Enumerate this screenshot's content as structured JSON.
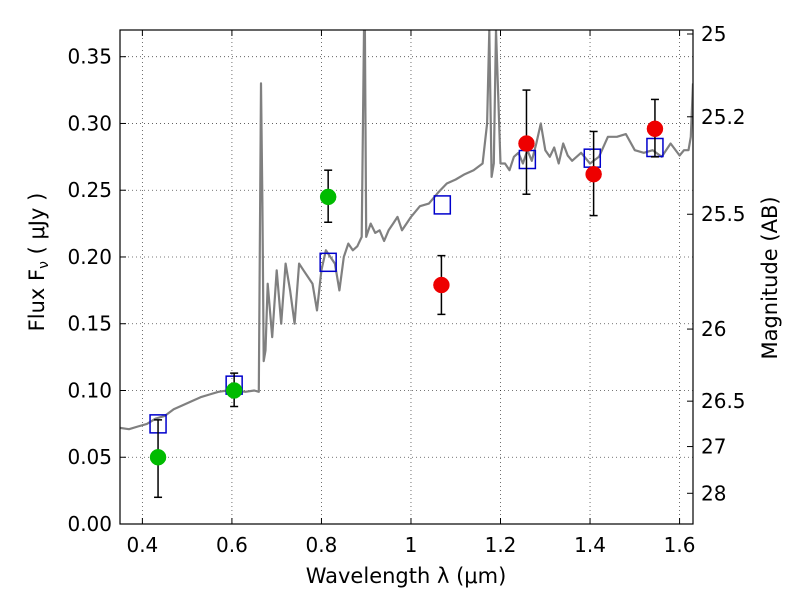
{
  "chart_data": {
    "type": "scatter",
    "xlabel": "Wavelength  λ (μm)",
    "ylabel": "Flux  F",
    "ylabel_sub": "ν",
    "ylabel_unit": "  ( μJy )",
    "y2label": "Magnitude (AB)",
    "xlim": [
      0.35,
      1.63
    ],
    "ylim": [
      0.0,
      0.37
    ],
    "grid": true,
    "x_ticks": [
      0.4,
      0.6,
      0.8,
      1.0,
      1.2,
      1.4,
      1.6
    ],
    "x_tick_labels": [
      "0.4",
      "0.6",
      "0.8",
      "1",
      "1.2",
      "1.4",
      "1.6"
    ],
    "y_ticks": [
      0.0,
      0.05,
      0.1,
      0.15,
      0.2,
      0.25,
      0.3,
      0.35
    ],
    "y_tick_labels": [
      "0.00",
      "0.05",
      "0.10",
      "0.15",
      "0.20",
      "0.25",
      "0.30",
      "0.35"
    ],
    "y2_ticks": [
      {
        "label": "25",
        "flux": 0.367
      },
      {
        "label": "25.2",
        "flux": 0.305
      },
      {
        "label": "25.5",
        "flux": 0.232
      },
      {
        "label": "26",
        "flux": 0.146
      },
      {
        "label": "26.5",
        "flux": 0.092
      },
      {
        "label": "27",
        "flux": 0.058
      },
      {
        "label": "28",
        "flux": 0.023
      }
    ],
    "colors": {
      "model": "#808080",
      "green": "#00bb00",
      "red": "#ee0000",
      "box": "#0000cc",
      "errorbar": "#000000"
    },
    "series": [
      {
        "kind": "model-spectrum",
        "x": [
          0.35,
          0.37,
          0.39,
          0.41,
          0.43,
          0.45,
          0.47,
          0.49,
          0.51,
          0.53,
          0.55,
          0.57,
          0.59,
          0.61,
          0.63,
          0.65,
          0.66,
          0.665,
          0.668,
          0.671,
          0.675,
          0.68,
          0.69,
          0.7,
          0.71,
          0.72,
          0.73,
          0.74,
          0.75,
          0.76,
          0.77,
          0.78,
          0.79,
          0.8,
          0.81,
          0.82,
          0.83,
          0.84,
          0.85,
          0.86,
          0.87,
          0.88,
          0.89,
          0.895,
          0.897,
          0.9,
          0.905,
          0.91,
          0.92,
          0.93,
          0.94,
          0.95,
          0.96,
          0.97,
          0.98,
          0.99,
          1.0,
          1.02,
          1.04,
          1.06,
          1.08,
          1.1,
          1.12,
          1.14,
          1.16,
          1.17,
          1.175,
          1.18,
          1.185,
          1.19,
          1.2,
          1.21,
          1.22,
          1.23,
          1.24,
          1.25,
          1.26,
          1.27,
          1.28,
          1.29,
          1.3,
          1.31,
          1.32,
          1.33,
          1.34,
          1.35,
          1.36,
          1.38,
          1.4,
          1.42,
          1.44,
          1.46,
          1.48,
          1.5,
          1.52,
          1.54,
          1.56,
          1.58,
          1.6,
          1.61,
          1.62,
          1.625,
          1.63
        ],
        "y": [
          0.072,
          0.071,
          0.073,
          0.075,
          0.079,
          0.081,
          0.086,
          0.089,
          0.092,
          0.095,
          0.097,
          0.099,
          0.1,
          0.1,
          0.099,
          0.1,
          0.099,
          0.33,
          0.24,
          0.122,
          0.13,
          0.18,
          0.14,
          0.19,
          0.15,
          0.195,
          0.175,
          0.15,
          0.195,
          0.19,
          0.185,
          0.18,
          0.16,
          0.19,
          0.205,
          0.2,
          0.195,
          0.175,
          0.2,
          0.21,
          0.205,
          0.208,
          0.215,
          0.37,
          0.37,
          0.215,
          0.22,
          0.225,
          0.218,
          0.22,
          0.212,
          0.22,
          0.225,
          0.23,
          0.22,
          0.225,
          0.23,
          0.238,
          0.24,
          0.248,
          0.255,
          0.258,
          0.262,
          0.265,
          0.27,
          0.3,
          0.37,
          0.26,
          0.27,
          0.37,
          0.27,
          0.27,
          0.265,
          0.275,
          0.278,
          0.27,
          0.28,
          0.272,
          0.285,
          0.3,
          0.28,
          0.275,
          0.282,
          0.27,
          0.285,
          0.276,
          0.272,
          0.278,
          0.27,
          0.275,
          0.29,
          0.29,
          0.292,
          0.28,
          0.278,
          0.28,
          0.275,
          0.285,
          0.276,
          0.28,
          0.28,
          0.29,
          0.33
        ]
      },
      {
        "kind": "synthetic-photometry-boxes",
        "x": [
          0.435,
          0.605,
          0.815,
          1.07,
          1.26,
          1.405,
          1.545
        ],
        "y": [
          0.075,
          0.104,
          0.196,
          0.239,
          0.273,
          0.274,
          0.282
        ]
      },
      {
        "kind": "observed-green",
        "x": [
          0.435,
          0.605,
          0.815
        ],
        "y": [
          0.05,
          0.1,
          0.245
        ],
        "err_lo": [
          0.02,
          0.088,
          0.226
        ],
        "err_hi": [
          0.078,
          0.113,
          0.265
        ]
      },
      {
        "kind": "observed-red",
        "x": [
          1.068,
          1.258,
          1.408,
          1.545
        ],
        "y": [
          0.179,
          0.285,
          0.262,
          0.296
        ],
        "err_lo": [
          0.157,
          0.247,
          0.231,
          0.275
        ],
        "err_hi": [
          0.201,
          0.325,
          0.294,
          0.318
        ]
      }
    ]
  }
}
